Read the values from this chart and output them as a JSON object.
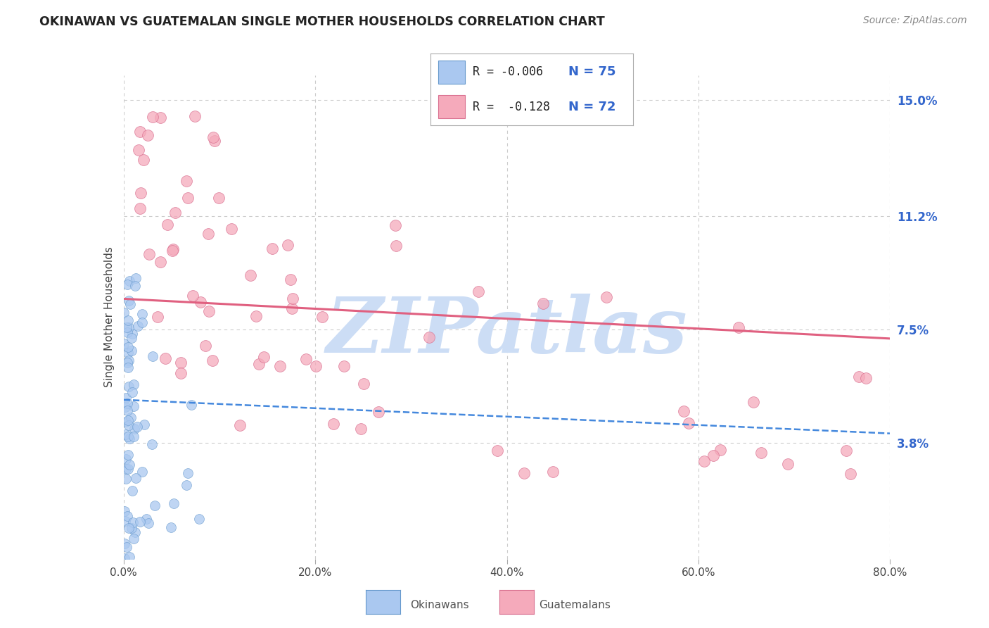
{
  "title": "OKINAWAN VS GUATEMALAN SINGLE MOTHER HOUSEHOLDS CORRELATION CHART",
  "source": "Source: ZipAtlas.com",
  "ylabel": "Single Mother Households",
  "ytick_labels": [
    "3.8%",
    "7.5%",
    "11.2%",
    "15.0%"
  ],
  "ytick_values": [
    0.038,
    0.075,
    0.112,
    0.15
  ],
  "xlim": [
    -0.005,
    0.82
  ],
  "ylim": [
    -0.005,
    0.162
  ],
  "plot_xlim": [
    0.0,
    0.8
  ],
  "plot_ylim": [
    0.0,
    0.158
  ],
  "okinawan_color": "#aac8f0",
  "guatemalan_color": "#f5aabb",
  "okinawan_edge": "#6699cc",
  "guatemalan_edge": "#d97090",
  "trendline_okinawan_color": "#4488dd",
  "trendline_guatemalan_color": "#e06080",
  "legend_line1": "R = -0.006   N = 75",
  "legend_line2": "R =  -0.128   N = 72",
  "watermark_text": "ZIPatlas",
  "watermark_color": "#ccddf5",
  "background_color": "#ffffff",
  "grid_color": "#cccccc",
  "title_color": "#222222",
  "source_color": "#888888",
  "ytick_color": "#3366cc",
  "xtick_color": "#444444",
  "okinawan_trend_x": [
    0.0,
    0.8
  ],
  "okinawan_trend_y": [
    0.052,
    0.041
  ],
  "guatemalan_trend_x": [
    0.0,
    0.8
  ],
  "guatemalan_trend_y": [
    0.085,
    0.072
  ]
}
